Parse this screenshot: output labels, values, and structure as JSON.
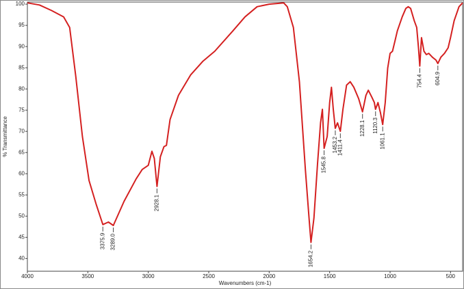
{
  "chart_data": {
    "type": "line",
    "xlabel": "Wavenumbers (cm-1)",
    "ylabel": "% Transmittance",
    "xlim": [
      4000,
      400
    ],
    "ylim": [
      37,
      100.5
    ],
    "xticks": [
      4000,
      3500,
      3000,
      2500,
      2000,
      1500,
      1000,
      500
    ],
    "yticks": [
      40,
      45,
      50,
      55,
      60,
      65,
      70,
      75,
      80,
      85,
      90,
      95,
      100
    ],
    "color": "#d42020",
    "x": [
      4000,
      3900,
      3800,
      3700,
      3650,
      3600,
      3545,
      3490,
      3430,
      3375.9,
      3330,
      3289,
      3200,
      3100,
      3050,
      3000,
      2970,
      2950,
      2928.1,
      2900,
      2870,
      2850,
      2820,
      2750,
      2650,
      2550,
      2450,
      2300,
      2200,
      2100,
      2000,
      1920,
      1880,
      1850,
      1800,
      1750,
      1700,
      1670,
      1654.2,
      1630,
      1600,
      1575,
      1560,
      1545.8,
      1520,
      1500,
      1485,
      1470,
      1453.2,
      1435,
      1411.4,
      1390,
      1360,
      1330,
      1300,
      1260,
      1228.1,
      1200,
      1180,
      1150,
      1130,
      1120.3,
      1100,
      1080,
      1061.1,
      1040,
      1020,
      1000,
      980,
      960,
      940,
      900,
      870,
      850,
      830,
      800,
      780,
      765,
      754.4,
      740,
      720,
      700,
      680,
      650,
      620,
      604.9,
      580,
      550,
      520,
      500,
      470,
      430,
      400
    ],
    "y": [
      100.3,
      99.8,
      98.5,
      97,
      94.5,
      83,
      68.8,
      58.4,
      52.7,
      48,
      48.6,
      47.8,
      53.5,
      58.8,
      61,
      62,
      65.3,
      63.6,
      57,
      64,
      66.4,
      66.7,
      72.8,
      78.5,
      83.3,
      86.5,
      88.9,
      93.7,
      97,
      99.4,
      100,
      100.2,
      100.3,
      99.4,
      94.5,
      81.7,
      60.8,
      49.5,
      43.8,
      49.5,
      62.4,
      72,
      75.2,
      66,
      68.8,
      76.8,
      80.4,
      75.2,
      70.7,
      72,
      70,
      75.2,
      80.9,
      81.7,
      80.4,
      77.7,
      74.6,
      78.5,
      79.7,
      78,
      76.8,
      75.2,
      76.8,
      74.4,
      71.6,
      76.8,
      84.9,
      88.4,
      88.9,
      91.3,
      93.7,
      97,
      99,
      99.4,
      99,
      96.1,
      94.5,
      89.7,
      85.4,
      92.1,
      88.9,
      88.1,
      88.4,
      87.5,
      86.8,
      86,
      87.5,
      88.4,
      89.7,
      92.1,
      96.1,
      99.4,
      100.3
    ],
    "peaks": [
      {
        "x": 3375.9,
        "y": 48,
        "label": "3375.9"
      },
      {
        "x": 3289,
        "y": 47.8,
        "label": "3289.0"
      },
      {
        "x": 2928.1,
        "y": 57,
        "label": "2928.1"
      },
      {
        "x": 1654.2,
        "y": 43.8,
        "label": "1654.2"
      },
      {
        "x": 1545.8,
        "y": 66,
        "label": "1545.8"
      },
      {
        "x": 1453.2,
        "y": 70.7,
        "label": "1453.2"
      },
      {
        "x": 1411.4,
        "y": 70,
        "label": "1411.4"
      },
      {
        "x": 1228.1,
        "y": 74.6,
        "label": "1228.1"
      },
      {
        "x": 1120.3,
        "y": 75.2,
        "label": "1120.3"
      },
      {
        "x": 1061.1,
        "y": 71.6,
        "label": "1061.1"
      },
      {
        "x": 754.4,
        "y": 85.4,
        "label": "754.4"
      },
      {
        "x": 604.9,
        "y": 86,
        "label": "604.9"
      }
    ]
  }
}
